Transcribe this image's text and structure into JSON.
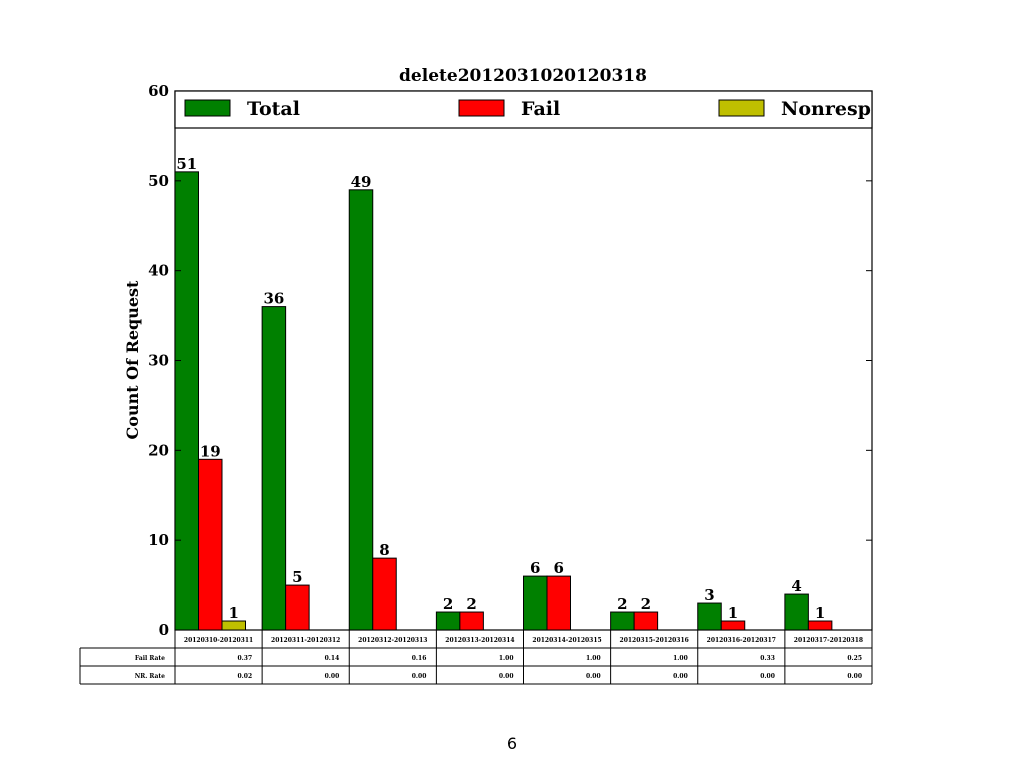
{
  "page_number": "6",
  "colors": {
    "total": "#008000",
    "fail": "#ff0000",
    "nonresp": "#bfbf00"
  },
  "chart_data": {
    "type": "bar",
    "title": "delete2012031020120318",
    "ylabel": "Count Of Request",
    "xlabel": "",
    "ylim": [
      0,
      60
    ],
    "yticks": [
      0,
      10,
      20,
      30,
      40,
      50,
      60
    ],
    "grid": false,
    "legend_position": "top",
    "categories": [
      "20120310-20120311",
      "20120311-20120312",
      "20120312-20120313",
      "20120313-20120314",
      "20120314-20120315",
      "20120315-20120316",
      "20120316-20120317",
      "20120317-20120318"
    ],
    "series": [
      {
        "name": "Total",
        "values": [
          51,
          36,
          49,
          2,
          6,
          2,
          3,
          4
        ],
        "labels": [
          "51",
          "36",
          "49",
          "2",
          "6",
          "2",
          "3",
          "4"
        ]
      },
      {
        "name": "Fail",
        "values": [
          19,
          5,
          8,
          2,
          6,
          2,
          1,
          1
        ],
        "labels": [
          "19",
          "5",
          "8",
          "2",
          "6",
          "2",
          "1",
          "1"
        ]
      },
      {
        "name": "Nonresp",
        "values": [
          1,
          0,
          0,
          0,
          0,
          0,
          0,
          0
        ],
        "labels": [
          "1",
          "",
          "",
          "",
          "",
          "",
          "",
          ""
        ]
      }
    ],
    "table": {
      "rows": [
        {
          "label": "Fail Rate",
          "values": [
            "0.37",
            "0.14",
            "0.16",
            "1.00",
            "1.00",
            "1.00",
            "0.33",
            "0.25"
          ]
        },
        {
          "label": "NR. Rate",
          "values": [
            "0.02",
            "0.00",
            "0.00",
            "0.00",
            "0.00",
            "0.00",
            "0.00",
            "0.00"
          ]
        }
      ]
    }
  }
}
